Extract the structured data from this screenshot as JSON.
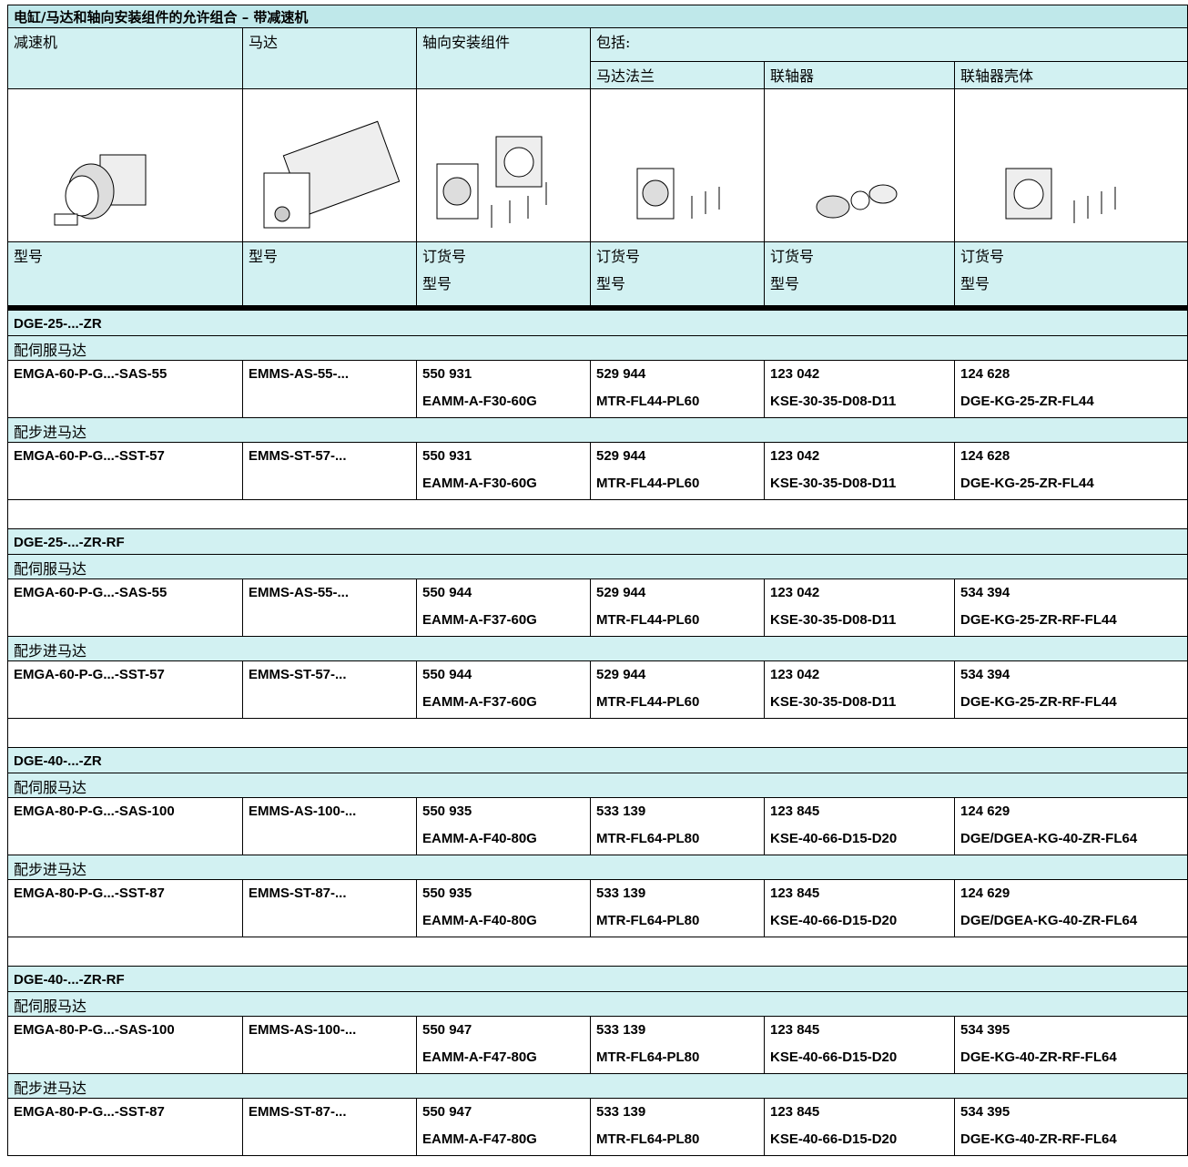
{
  "title": "电缸/马达和轴向安装组件的允许组合 – 带减速机",
  "header": {
    "columns": [
      "减速机",
      "马达",
      "轴向安装组件",
      "包括:"
    ],
    "subcolumns": [
      "马达法兰",
      "联轴器",
      "联轴器壳体"
    ],
    "labels": [
      [
        "型号"
      ],
      [
        "型号"
      ],
      [
        "订货号",
        "型号"
      ],
      [
        "订货号",
        "型号"
      ],
      [
        "订货号",
        "型号"
      ],
      [
        "订货号",
        "型号"
      ]
    ]
  },
  "groups": [
    {
      "name": "DGE-25-...-ZR",
      "sections": [
        {
          "label": "配伺服马达",
          "row": [
            "EMGA-60-P-G...-SAS-55",
            "EMMS-AS-55-...",
            [
              "550 931",
              "EAMM-A-F30-60G"
            ],
            [
              "529 944",
              "MTR-FL44-PL60"
            ],
            [
              "123 042",
              "KSE-30-35-D08-D11"
            ],
            [
              "124 628",
              "DGE-KG-25-ZR-FL44"
            ]
          ]
        },
        {
          "label": "配步进马达",
          "row": [
            "EMGA-60-P-G...-SST-57",
            "EMMS-ST-57-...",
            [
              "550 931",
              "EAMM-A-F30-60G"
            ],
            [
              "529 944",
              "MTR-FL44-PL60"
            ],
            [
              "123 042",
              "KSE-30-35-D08-D11"
            ],
            [
              "124 628",
              "DGE-KG-25-ZR-FL44"
            ]
          ]
        }
      ]
    },
    {
      "name": "DGE-25-...-ZR-RF",
      "sections": [
        {
          "label": "配伺服马达",
          "row": [
            "EMGA-60-P-G...-SAS-55",
            "EMMS-AS-55-...",
            [
              "550 944",
              "EAMM-A-F37-60G"
            ],
            [
              "529 944",
              "MTR-FL44-PL60"
            ],
            [
              "123 042",
              "KSE-30-35-D08-D11"
            ],
            [
              "534 394",
              "DGE-KG-25-ZR-RF-FL44"
            ]
          ]
        },
        {
          "label": "配步进马达",
          "row": [
            "EMGA-60-P-G...-SST-57",
            "EMMS-ST-57-...",
            [
              "550 944",
              "EAMM-A-F37-60G"
            ],
            [
              "529 944",
              "MTR-FL44-PL60"
            ],
            [
              "123 042",
              "KSE-30-35-D08-D11"
            ],
            [
              "534 394",
              "DGE-KG-25-ZR-RF-FL44"
            ]
          ]
        }
      ]
    },
    {
      "name": "DGE-40-...-ZR",
      "sections": [
        {
          "label": "配伺服马达",
          "row": [
            "EMGA-80-P-G...-SAS-100",
            "EMMS-AS-100-...",
            [
              "550 935",
              "EAMM-A-F40-80G"
            ],
            [
              "533 139",
              "MTR-FL64-PL80"
            ],
            [
              "123 845",
              "KSE-40-66-D15-D20"
            ],
            [
              "124 629",
              "DGE/DGEA-KG-40-ZR-FL64"
            ]
          ]
        },
        {
          "label": "配步进马达",
          "row": [
            "EMGA-80-P-G...-SST-87",
            "EMMS-ST-87-...",
            [
              "550 935",
              "EAMM-A-F40-80G"
            ],
            [
              "533 139",
              "MTR-FL64-PL80"
            ],
            [
              "123 845",
              "KSE-40-66-D15-D20"
            ],
            [
              "124 629",
              "DGE/DGEA-KG-40-ZR-FL64"
            ]
          ]
        }
      ]
    },
    {
      "name": "DGE-40-...-ZR-RF",
      "sections": [
        {
          "label": "配伺服马达",
          "row": [
            "EMGA-80-P-G...-SAS-100",
            "EMMS-AS-100-...",
            [
              "550 947",
              "EAMM-A-F47-80G"
            ],
            [
              "533 139",
              "MTR-FL64-PL80"
            ],
            [
              "123 845",
              "KSE-40-66-D15-D20"
            ],
            [
              "534 395",
              "DGE-KG-40-ZR-RF-FL64"
            ]
          ]
        },
        {
          "label": "配步进马达",
          "row": [
            "EMGA-80-P-G...-SST-87",
            "EMMS-ST-87-...",
            [
              "550 947",
              "EAMM-A-F47-80G"
            ],
            [
              "533 139",
              "MTR-FL64-PL80"
            ],
            [
              "123 845",
              "KSE-40-66-D15-D20"
            ],
            [
              "534 395",
              "DGE-KG-40-ZR-RF-FL64"
            ]
          ]
        }
      ]
    }
  ]
}
